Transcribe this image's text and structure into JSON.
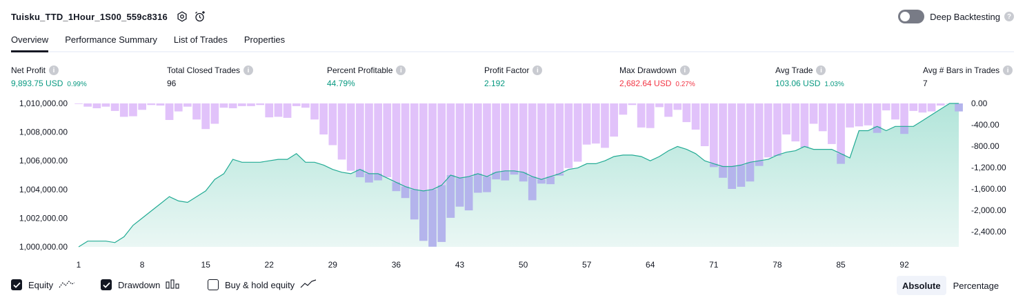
{
  "header": {
    "title": "Tuisku_TTD_1Hour_1S00_559c8316",
    "deep_backtesting_label": "Deep Backtesting",
    "deep_backtesting_on": false
  },
  "tabs": [
    "Overview",
    "Performance Summary",
    "List of Trades",
    "Properties"
  ],
  "metrics": {
    "net_profit": {
      "label": "Net Profit",
      "value": "9,893.75 USD",
      "pct": "0.99%"
    },
    "total_closed_trades": {
      "label": "Total Closed Trades",
      "value": "96"
    },
    "percent_profitable": {
      "label": "Percent Profitable",
      "value": "44.79%"
    },
    "profit_factor": {
      "label": "Profit Factor",
      "value": "2.192"
    },
    "max_drawdown": {
      "label": "Max Drawdown",
      "value": "2,682.64 USD",
      "pct": "0.27%"
    },
    "avg_trade": {
      "label": "Avg Trade",
      "value": "103.06 USD",
      "pct": "1.03%"
    },
    "avg_bars": {
      "label": "Avg # Bars in Trades",
      "value": "7"
    }
  },
  "colors": {
    "equity_line": "#22ab94",
    "equity_fill_top": "#b2e5da",
    "equity_fill_bottom": "#eaf7f4",
    "drawdown_bar": "#e1c2fa",
    "overlap_bar": "#b4b4ec",
    "positive": "#089981",
    "negative": "#f23645"
  },
  "legend": {
    "equity": "Equity",
    "drawdown": "Drawdown",
    "buy_hold": "Buy & hold equity",
    "equity_checked": true,
    "drawdown_checked": true,
    "buy_hold_checked": false
  },
  "scale_toggle": {
    "absolute": "Absolute",
    "percentage": "Percentage",
    "selected": "Absolute"
  },
  "chart_data": {
    "type": "line",
    "left_axis": {
      "ylim": [
        1000000,
        1010000
      ],
      "ticks": [
        "1,010,000.00",
        "1,008,000.00",
        "1,006,000.00",
        "1,004,000.00",
        "1,002,000.00",
        "1,000,000.00"
      ]
    },
    "right_axis": {
      "ylim": [
        -2682.64,
        0
      ],
      "ticks": [
        "0.00",
        "-400.00",
        "-800.00",
        "-1,200.00",
        "-1,600.00",
        "-2,000.00",
        "-2,400.00"
      ]
    },
    "x_ticks": [
      "1",
      "8",
      "15",
      "22",
      "29",
      "36",
      "43",
      "50",
      "57",
      "64",
      "71",
      "78",
      "85",
      "92"
    ],
    "series": [
      {
        "name": "Equity",
        "type": "area",
        "axis": "left",
        "values": [
          1000000,
          1000400,
          1000400,
          1000400,
          1000300,
          1000700,
          1001500,
          1002000,
          1002500,
          1003000,
          1003500,
          1003200,
          1003100,
          1003500,
          1003900,
          1004700,
          1005100,
          1006100,
          1005900,
          1005900,
          1005900,
          1006000,
          1006100,
          1006100,
          1006500,
          1005900,
          1005900,
          1005700,
          1005400,
          1005200,
          1005100,
          1005400,
          1005100,
          1005100,
          1004800,
          1004500,
          1004200,
          1004000,
          1003900,
          1004000,
          1004300,
          1005000,
          1004800,
          1004900,
          1005100,
          1004900,
          1005200,
          1005300,
          1005300,
          1005200,
          1004900,
          1004700,
          1004900,
          1005100,
          1005400,
          1005500,
          1005800,
          1005800,
          1006000,
          1006300,
          1006400,
          1006400,
          1006300,
          1006000,
          1006300,
          1006700,
          1007000,
          1006800,
          1006500,
          1006000,
          1005800,
          1005600,
          1005600,
          1005700,
          1005900,
          1006000,
          1006100,
          1006400,
          1006600,
          1006700,
          1007000,
          1006800,
          1006800,
          1006800,
          1006500,
          1006200,
          1008100,
          1008100,
          1008400,
          1008100,
          1008400,
          1008400,
          1008400,
          1008800,
          1009200,
          1009600,
          1010000,
          1010000
        ]
      },
      {
        "name": "Drawdown",
        "type": "bar",
        "axis": "right",
        "values": [
          -10,
          -60,
          -90,
          -60,
          -140,
          -250,
          -240,
          -120,
          -30,
          -40,
          -310,
          -150,
          -60,
          -300,
          -480,
          -380,
          -80,
          -90,
          -50,
          -50,
          -30,
          -260,
          -250,
          -270,
          -50,
          -80,
          -300,
          -580,
          -780,
          -1050,
          -1260,
          -1380,
          -1480,
          -1440,
          -1380,
          -1640,
          -1770,
          -2170,
          -2570,
          -2680,
          -2590,
          -2140,
          -1930,
          -2000,
          -1670,
          -1660,
          -1420,
          -1440,
          -1330,
          -1460,
          -1810,
          -1500,
          -1510,
          -1350,
          -1210,
          -1090,
          -770,
          -750,
          -830,
          -620,
          -210,
          -30,
          -450,
          -460,
          -70,
          -250,
          -120,
          -350,
          -490,
          -800,
          -1190,
          -1390,
          -1600,
          -1560,
          -1460,
          -1170,
          -1010,
          -980,
          -580,
          -710,
          -820,
          -380,
          -520,
          -760,
          -1130,
          -450,
          -430,
          -410,
          -550,
          -130,
          -300,
          -570,
          -140,
          -170,
          -150,
          -40,
          -5,
          -150
        ]
      }
    ]
  }
}
